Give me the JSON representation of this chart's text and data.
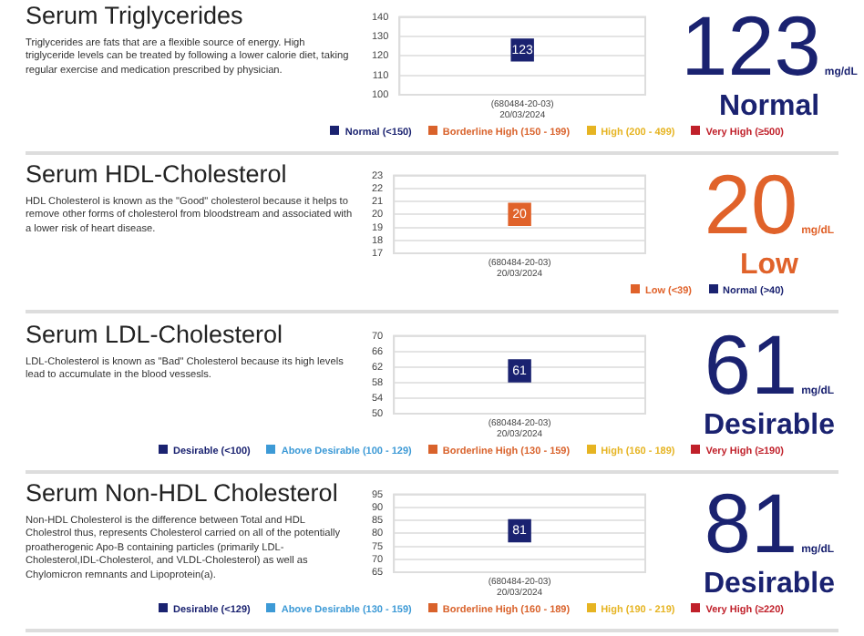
{
  "chart_data": [
    {
      "type": "scatter",
      "title": "Serum Triglycerides",
      "subtitle": "Triglycerides are fats that are a flexible source of energy. High triglyceride levels can be treated by following a lower calorie diet, taking regular exercise and medication prescribed by physician.",
      "categories": [
        "(680484-20-03) 20/03/2024"
      ],
      "ylim": [
        100,
        140
      ],
      "yticks": [
        100,
        110,
        120,
        130,
        140
      ],
      "grid": "y",
      "marker": "square",
      "data_labels": true,
      "legend": "bottom",
      "annotations": [
        "123",
        "mg/dL",
        "Normal"
      ],
      "series": [
        {
          "name": "Normal (<150)",
          "color": "#1a2270",
          "values": [
            123
          ]
        },
        {
          "name": "Borderline High (150 - 199)",
          "color": "#d9622b",
          "values": [
            null
          ]
        },
        {
          "name": "High (200 - 499)",
          "color": "#e6b422",
          "values": [
            null
          ]
        },
        {
          "name": "Very High (≥500)",
          "color": "#c0202a",
          "values": [
            null
          ]
        }
      ]
    },
    {
      "type": "scatter",
      "title": "Serum HDL-Cholesterol",
      "subtitle": "HDL Cholesterol is known as the \"Good\" cholesterol because it helps to remove other forms of cholesterol from bloodstream and associated with a lower risk of heart disease.",
      "categories": [
        "(680484-20-03) 20/03/2024"
      ],
      "ylim": [
        17,
        23
      ],
      "yticks": [
        17,
        18,
        19,
        20,
        21,
        22,
        23
      ],
      "grid": "y",
      "marker": "square",
      "data_labels": true,
      "legend": "bottom right",
      "annotations": [
        "20",
        "mg/dL",
        "Low"
      ],
      "series": [
        {
          "name": "Low (<39)",
          "color": "#e0622a",
          "values": [
            20
          ]
        },
        {
          "name": "Normal (>40)",
          "color": "#1a2270",
          "values": [
            null
          ]
        }
      ]
    },
    {
      "type": "scatter",
      "title": "Serum LDL-Cholesterol",
      "subtitle": "LDL-Cholesterol is known as \"Bad\" Cholesterol because its high levels lead  to accumulate in the blood vessesls.",
      "categories": [
        "(680484-20-03) 20/03/2024"
      ],
      "ylim": [
        50,
        70
      ],
      "yticks": [
        50,
        54,
        58,
        62,
        66,
        70
      ],
      "grid": "y",
      "marker": "square",
      "data_labels": true,
      "legend": "bottom",
      "annotations": [
        "61",
        "mg/dL",
        "Desirable"
      ],
      "series": [
        {
          "name": "Desirable (<100)",
          "color": "#1a2270",
          "values": [
            61
          ]
        },
        {
          "name": "Above Desirable (100 - 129)",
          "color": "#3d9ad6",
          "values": [
            null
          ]
        },
        {
          "name": "Borderline High (130 - 159)",
          "color": "#d9622b",
          "values": [
            null
          ]
        },
        {
          "name": "High (160 - 189)",
          "color": "#e6b422",
          "values": [
            null
          ]
        },
        {
          "name": "Very High (≥190)",
          "color": "#c0202a",
          "values": [
            null
          ]
        }
      ]
    },
    {
      "type": "scatter",
      "title": "Serum Non-HDL Cholesterol",
      "subtitle": "Non-HDL Cholesterol is the difference between Total and HDL Cholestrol thus, represents Cholesterol carried on all of the potentially proatherogenic Apo-B containing particles (primarily LDL-Cholesterol,IDL-Cholesterol, and VLDL-Cholesterol) as well as Chylomicron remnants and Lipoprotein(a).",
      "categories": [
        "(680484-20-03) 20/03/2024"
      ],
      "ylim": [
        65,
        95
      ],
      "yticks": [
        65,
        70,
        75,
        80,
        85,
        90,
        95
      ],
      "grid": "y",
      "marker": "square",
      "data_labels": true,
      "legend": "bottom",
      "annotations": [
        "81",
        "mg/dL",
        "Desirable"
      ],
      "series": [
        {
          "name": "Desirable (<129)",
          "color": "#1a2270",
          "values": [
            81
          ]
        },
        {
          "name": "Above Desirable (130 - 159)",
          "color": "#3d9ad6",
          "values": [
            null
          ]
        },
        {
          "name": "Borderline High (160 - 189)",
          "color": "#d9622b",
          "values": [
            null
          ]
        },
        {
          "name": "High (190 - 219)",
          "color": "#e6b422",
          "values": [
            null
          ]
        },
        {
          "name": "Very High (≥220)",
          "color": "#c0202a",
          "values": [
            null
          ]
        }
      ]
    }
  ]
}
